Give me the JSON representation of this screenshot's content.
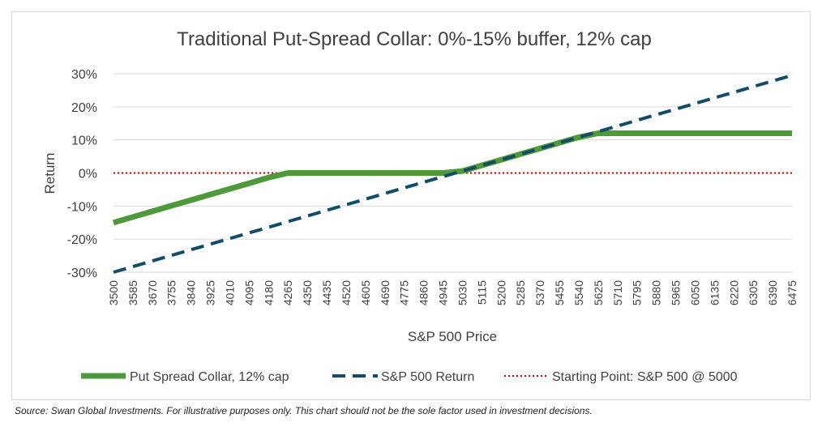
{
  "chart_data": {
    "type": "line",
    "title": "Traditional Put-Spread Collar: 0%-15% buffer, 12% cap",
    "xlabel": "S&P 500 Price",
    "ylabel": "Return",
    "x": [
      3500,
      3585,
      3670,
      3755,
      3840,
      3925,
      4010,
      4095,
      4180,
      4265,
      4350,
      4435,
      4520,
      4605,
      4690,
      4775,
      4860,
      4945,
      5030,
      5115,
      5200,
      5285,
      5370,
      5455,
      5540,
      5625,
      5710,
      5795,
      5880,
      5965,
      6050,
      6135,
      6220,
      6305,
      6390,
      6475
    ],
    "yticks": [
      "30%",
      "20%",
      "10%",
      "0%",
      "-10%",
      "-20%",
      "-30%"
    ],
    "ylim": [
      -30,
      30
    ],
    "y_tick_values": [
      30,
      20,
      10,
      0,
      -10,
      -20,
      -30
    ],
    "series": [
      {
        "name": "Put Spread Collar, 12% cap",
        "color": "#4e9a3b",
        "style": "solid-thick",
        "values": [
          -15,
          -13.3,
          -11.6,
          -9.9,
          -8.2,
          -6.5,
          -4.8,
          -3.1,
          -1.4,
          0,
          0,
          0,
          0,
          0,
          0,
          0,
          0,
          0,
          0.6,
          2.3,
          4.0,
          5.7,
          7.4,
          9.1,
          10.8,
          12,
          12,
          12,
          12,
          12,
          12,
          12,
          12,
          12,
          12,
          12
        ]
      },
      {
        "name": "S&P 500 Return",
        "color": "#114d66",
        "style": "dashed",
        "values": [
          -30,
          -28.3,
          -26.6,
          -24.9,
          -23.2,
          -21.5,
          -19.8,
          -18.1,
          -16.4,
          -14.7,
          -13.0,
          -11.3,
          -9.6,
          -7.9,
          -6.2,
          -4.5,
          -2.8,
          -1.1,
          0.6,
          2.3,
          4.0,
          5.7,
          7.4,
          9.1,
          10.8,
          12.5,
          14.2,
          15.9,
          17.6,
          19.3,
          21.0,
          22.7,
          24.4,
          26.1,
          27.8,
          29.5
        ]
      },
      {
        "name": "Starting Point: S&P 500 @ 5000",
        "color": "#c00000",
        "style": "dotted",
        "values": [
          0,
          0,
          0,
          0,
          0,
          0,
          0,
          0,
          0,
          0,
          0,
          0,
          0,
          0,
          0,
          0,
          0,
          0,
          0,
          0,
          0,
          0,
          0,
          0,
          0,
          0,
          0,
          0,
          0,
          0,
          0,
          0,
          0,
          0,
          0,
          0
        ]
      }
    ],
    "grid": true,
    "legend_position": "bottom"
  },
  "footnote": "Source: Swan Global Investments. For illustrative purposes only. This chart should not be the sole factor used in investment decisions."
}
